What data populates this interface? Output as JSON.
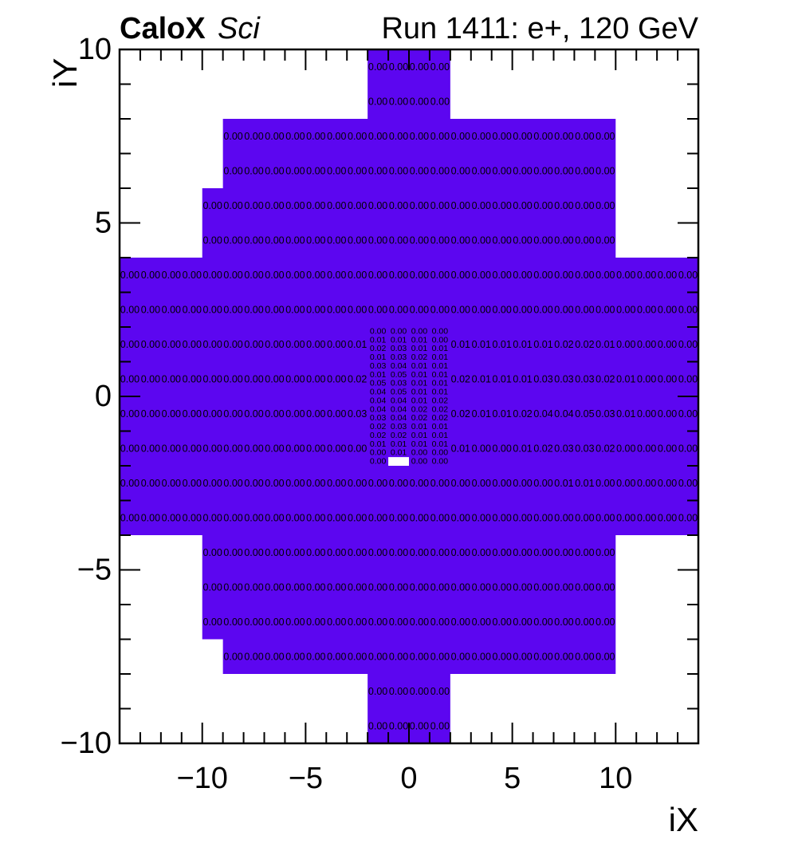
{
  "chart_data": {
    "type": "heatmap",
    "title_bold": "CaloX",
    "title_italic": "Sci",
    "title_right": "Run 1411: e+, 120 GeV",
    "xlabel": "iX",
    "ylabel": "iY",
    "xlim": [
      -14,
      14
    ],
    "ylim": [
      -10,
      10
    ],
    "x_ticks": [
      -10,
      -5,
      0,
      5,
      10
    ],
    "y_ticks": [
      10,
      5,
      0,
      -5,
      -10
    ],
    "fill_color": "#5C06F0",
    "value_color": "#000000",
    "regions": [
      {
        "x0": -2,
        "x1": 2,
        "y0": 8,
        "y1": 10
      },
      {
        "x0": -9,
        "x1": 10,
        "y0": 6,
        "y1": 8
      },
      {
        "x0": -10,
        "x1": 10,
        "y0": 4,
        "y1": 6
      },
      {
        "x0": -14,
        "x1": 14,
        "y0": -4,
        "y1": 4
      },
      {
        "x0": -10,
        "x1": 10,
        "y0": -7,
        "y1": -4
      },
      {
        "x0": -9,
        "x1": 10,
        "y0": -8,
        "y1": -7
      },
      {
        "x0": -2,
        "x1": 2,
        "y0": -10,
        "y1": -8
      }
    ],
    "empty_cells": [
      {
        "x0": -1,
        "x1": 0,
        "y0": -2,
        "y1": -1.75
      }
    ],
    "coarse_rows": [
      {
        "iy": 9.5,
        "segments": [
          {
            "x0": -2,
            "values": [
              [
                4,
                "0.00"
              ]
            ]
          }
        ]
      },
      {
        "iy": 8.5,
        "segments": [
          {
            "x0": -2,
            "values": [
              [
                4,
                "0.00"
              ]
            ]
          }
        ]
      },
      {
        "iy": 7.5,
        "segments": [
          {
            "x0": -9,
            "values": [
              [
                19,
                "0.00"
              ]
            ]
          }
        ]
      },
      {
        "iy": 6.5,
        "segments": [
          {
            "x0": -9,
            "values": [
              [
                19,
                "0.00"
              ]
            ]
          }
        ]
      },
      {
        "iy": 5.5,
        "segments": [
          {
            "x0": -10,
            "values": [
              [
                20,
                "0.00"
              ]
            ]
          }
        ]
      },
      {
        "iy": 4.5,
        "segments": [
          {
            "x0": -10,
            "values": [
              [
                20,
                "0.00"
              ]
            ]
          }
        ]
      },
      {
        "iy": 3.5,
        "segments": [
          {
            "x0": -14,
            "values": [
              [
                28,
                "0.00"
              ]
            ]
          }
        ]
      },
      {
        "iy": 2.5,
        "segments": [
          {
            "x0": -14,
            "values": [
              [
                28,
                "0.00"
              ]
            ]
          }
        ]
      },
      {
        "iy": 1.5,
        "segments": [
          {
            "x0": -14,
            "values": [
              [
                11,
                "0.00"
              ],
              "0.01"
            ]
          },
          {
            "x0": 2,
            "values": [
              "0.01",
              "0.01",
              "0.01",
              "0.01",
              "0.01",
              "0.02",
              "0.02",
              "0.01",
              "0.00",
              "0.00",
              "0.00",
              "0.00"
            ]
          }
        ]
      },
      {
        "iy": 0.5,
        "segments": [
          {
            "x0": -14,
            "values": [
              [
                11,
                "0.00"
              ],
              "0.02"
            ]
          },
          {
            "x0": 2,
            "values": [
              "0.02",
              "0.01",
              "0.01",
              "0.01",
              "0.03",
              "0.03",
              "0.03",
              "0.02",
              "0.01",
              "0.00",
              "0.00",
              "0.00"
            ]
          }
        ]
      },
      {
        "iy": -0.5,
        "segments": [
          {
            "x0": -14,
            "values": [
              [
                11,
                "0.00"
              ],
              "0.03"
            ]
          },
          {
            "x0": 2,
            "values": [
              "0.02",
              "0.01",
              "0.01",
              "0.02",
              "0.04",
              "0.04",
              "0.05",
              "0.03",
              "0.01",
              "0.00",
              "0.00",
              "0.00"
            ]
          }
        ]
      },
      {
        "iy": -1.5,
        "segments": [
          {
            "x0": -14,
            "values": [
              [
                12,
                "0.00"
              ]
            ]
          },
          {
            "x0": 2,
            "values": [
              "0.01",
              "0.00",
              "0.00",
              "0.01",
              "0.02",
              "0.03",
              "0.03",
              "0.02",
              "0.00",
              "0.00",
              "0.00",
              "0.00"
            ]
          }
        ]
      },
      {
        "iy": -2.5,
        "segments": [
          {
            "x0": -14,
            "values": [
              [
                21,
                "0.00"
              ],
              "0.01",
              "0.01",
              [
                5,
                "0.00"
              ]
            ]
          }
        ]
      },
      {
        "iy": -3.5,
        "segments": [
          {
            "x0": -14,
            "values": [
              [
                28,
                "0.00"
              ]
            ]
          }
        ]
      },
      {
        "iy": -4.5,
        "segments": [
          {
            "x0": -10,
            "values": [
              [
                20,
                "0.00"
              ]
            ]
          }
        ]
      },
      {
        "iy": -5.5,
        "segments": [
          {
            "x0": -10,
            "values": [
              [
                20,
                "0.00"
              ]
            ]
          }
        ]
      },
      {
        "iy": -6.5,
        "segments": [
          {
            "x0": -10,
            "values": [
              [
                20,
                "0.00"
              ]
            ]
          }
        ]
      },
      {
        "iy": -7.5,
        "segments": [
          {
            "x0": -9,
            "values": [
              [
                19,
                "0.00"
              ]
            ]
          }
        ]
      },
      {
        "iy": -8.5,
        "segments": [
          {
            "x0": -2,
            "values": [
              [
                4,
                "0.00"
              ]
            ]
          }
        ]
      },
      {
        "iy": -9.5,
        "segments": [
          {
            "x0": -2,
            "values": [
              [
                4,
                "0.00"
              ]
            ]
          }
        ]
      }
    ],
    "fine_grid": {
      "x_centers": [
        -1.5,
        -0.5,
        0.5,
        1.5
      ],
      "y_start": 1.875,
      "y_step": -0.25,
      "rows": [
        [
          "0.00",
          "0.00",
          "0.00",
          "0.00"
        ],
        [
          "0.01",
          "0.01",
          "0.01",
          "0.00"
        ],
        [
          "0.02",
          "0.03",
          "0.01",
          "0.01"
        ],
        [
          "0.01",
          "0.03",
          "0.02",
          "0.01"
        ],
        [
          "0.03",
          "0.04",
          "0.01",
          "0.01"
        ],
        [
          "0.01",
          "0.05",
          "0.01",
          "0.01"
        ],
        [
          "0.05",
          "0.03",
          "0.01",
          "0.01"
        ],
        [
          "0.04",
          "0.05",
          "0.01",
          "0.01"
        ],
        [
          "0.04",
          "0.04",
          "0.01",
          "0.02"
        ],
        [
          "0.04",
          "0.04",
          "0.02",
          "0.02"
        ],
        [
          "0.03",
          "0.04",
          "0.02",
          "0.02"
        ],
        [
          "0.02",
          "0.03",
          "0.01",
          "0.01"
        ],
        [
          "0.02",
          "0.02",
          "0.01",
          "0.01"
        ],
        [
          "0.01",
          "0.01",
          "0.01",
          "0.01"
        ],
        [
          "0.00",
          "0.01",
          "0.00",
          "0.00"
        ],
        [
          "0.00",
          null,
          "0.00",
          "0.00"
        ]
      ]
    }
  }
}
